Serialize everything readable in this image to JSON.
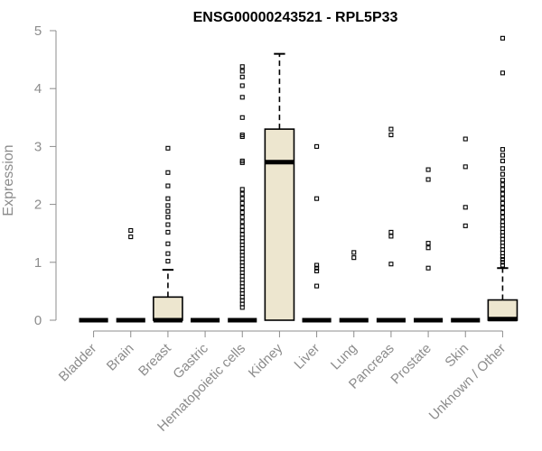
{
  "chart_data": {
    "type": "box",
    "title": "ENSG00000243521 - RPL5P33",
    "xlabel": "",
    "ylabel": "Expression",
    "ylim": [
      0,
      5
    ],
    "yticks": [
      0,
      1,
      2,
      3,
      4,
      5
    ],
    "grid": false,
    "box_color": "#ede6cf",
    "categories": [
      "Bladder",
      "Brain",
      "Breast",
      "Gastric",
      "Hematopoietic cells",
      "Kidney",
      "Liver",
      "Lung",
      "Pancreas",
      "Prostate",
      "Skin",
      "Unknown / Other"
    ],
    "boxes": [
      {
        "q1": 0,
        "median": 0,
        "q3": 0,
        "whisker_low": 0,
        "whisker_high": 0,
        "outliers": []
      },
      {
        "q1": 0,
        "median": 0,
        "q3": 0,
        "whisker_low": 0,
        "whisker_high": 0,
        "outliers": [
          1.44,
          1.55
        ]
      },
      {
        "q1": 0,
        "median": 0,
        "q3": 0.4,
        "whisker_low": 0,
        "whisker_high": 0.87,
        "outliers": [
          1.02,
          1.15,
          1.32,
          1.52,
          1.65,
          1.78,
          1.88,
          1.98,
          2.1,
          2.32,
          2.55,
          2.97
        ]
      },
      {
        "q1": 0,
        "median": 0,
        "q3": 0,
        "whisker_low": 0,
        "whisker_high": 0,
        "outliers": []
      },
      {
        "q1": 0,
        "median": 0,
        "q3": 0,
        "whisker_low": 0,
        "whisker_high": 0,
        "outliers": [
          0.22,
          0.28,
          0.34,
          0.4,
          0.46,
          0.52,
          0.58,
          0.64,
          0.7,
          0.76,
          0.82,
          0.88,
          0.94,
          1.0,
          1.06,
          1.12,
          1.18,
          1.24,
          1.3,
          1.36,
          1.42,
          1.48,
          1.55,
          1.62,
          1.7,
          1.78,
          1.86,
          1.94,
          2.02,
          2.1,
          2.18,
          2.26,
          2.72,
          2.75,
          3.17,
          3.2,
          3.5,
          3.85,
          4.05,
          4.2,
          4.3,
          4.38
        ]
      },
      {
        "q1": 0,
        "median": 2.73,
        "q3": 3.3,
        "whisker_low": 0,
        "whisker_high": 4.6,
        "outliers": []
      },
      {
        "q1": 0,
        "median": 0,
        "q3": 0,
        "whisker_low": 0,
        "whisker_high": 0,
        "outliers": [
          0.59,
          0.85,
          0.9,
          0.95,
          2.1,
          3.0
        ]
      },
      {
        "q1": 0,
        "median": 0,
        "q3": 0,
        "whisker_low": 0,
        "whisker_high": 0,
        "outliers": [
          1.08,
          1.17
        ]
      },
      {
        "q1": 0,
        "median": 0,
        "q3": 0,
        "whisker_low": 0,
        "whisker_high": 0,
        "outliers": [
          0.97,
          1.45,
          1.52,
          3.2,
          3.3
        ]
      },
      {
        "q1": 0,
        "median": 0,
        "q3": 0,
        "whisker_low": 0,
        "whisker_high": 0,
        "outliers": [
          0.9,
          1.25,
          1.33,
          2.43,
          2.6
        ]
      },
      {
        "q1": 0,
        "median": 0,
        "q3": 0,
        "whisker_low": 0,
        "whisker_high": 0,
        "outliers": [
          1.63,
          1.95,
          2.65,
          3.13
        ]
      },
      {
        "q1": 0,
        "median": 0.02,
        "q3": 0.35,
        "whisker_low": 0,
        "whisker_high": 0.9,
        "outliers": [
          0.95,
          1.0,
          1.05,
          1.1,
          1.16,
          1.22,
          1.28,
          1.34,
          1.4,
          1.46,
          1.52,
          1.58,
          1.64,
          1.7,
          1.78,
          1.86,
          1.94,
          2.02,
          2.1,
          2.18,
          2.26,
          2.34,
          2.42,
          2.52,
          2.62,
          2.75,
          2.85,
          2.95,
          4.27,
          4.87
        ]
      }
    ]
  }
}
